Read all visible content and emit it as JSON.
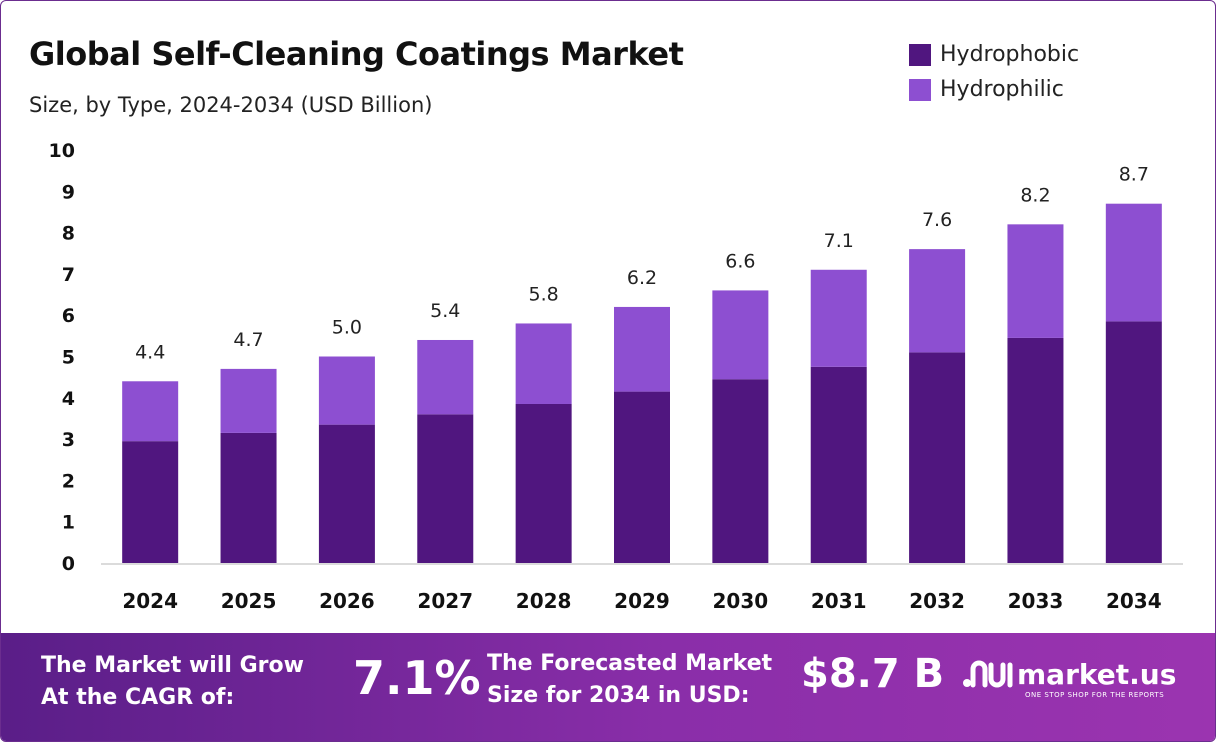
{
  "header": {
    "title": "Global Self-Cleaning Coatings Market",
    "subtitle": "Size, by Type, 2024-2034 (USD Billion)"
  },
  "legend": [
    {
      "label": "Hydrophobic",
      "color": "#50167f"
    },
    {
      "label": "Hydrophilic",
      "color": "#8d4fd1"
    }
  ],
  "chart_data": {
    "type": "bar",
    "stacked": true,
    "categories": [
      "2024",
      "2025",
      "2026",
      "2027",
      "2028",
      "2029",
      "2030",
      "2031",
      "2032",
      "2033",
      "2034"
    ],
    "series": [
      {
        "name": "Hydrophobic",
        "color": "#50167f",
        "values": [
          2.95,
          3.15,
          3.35,
          3.6,
          3.85,
          4.15,
          4.45,
          4.75,
          5.1,
          5.45,
          5.85
        ]
      },
      {
        "name": "Hydrophilic",
        "color": "#8d4fd1",
        "values": [
          1.45,
          1.55,
          1.65,
          1.8,
          1.95,
          2.05,
          2.15,
          2.35,
          2.5,
          2.75,
          2.85
        ]
      }
    ],
    "totals": [
      4.4,
      4.7,
      5.0,
      5.4,
      5.8,
      6.2,
      6.6,
      7.1,
      7.6,
      8.2,
      8.7
    ],
    "total_labels": [
      "4.4",
      "4.7",
      "5.0",
      "5.4",
      "5.8",
      "6.2",
      "6.6",
      "7.1",
      "7.6",
      "8.2",
      "8.7"
    ],
    "yticks": [
      "0",
      "1",
      "2",
      "3",
      "4",
      "5",
      "6",
      "7",
      "8",
      "9",
      "10"
    ],
    "ylim": [
      0,
      10
    ],
    "grid": false,
    "legend_position": "top-right",
    "title": "Global Self-Cleaning Coatings Market",
    "subtitle": "Size, by Type, 2024-2034 (USD Billion)"
  },
  "footer": {
    "cagr_line1": "The Market will Grow",
    "cagr_line2": "At the CAGR of:",
    "cagr_value": "7.1%",
    "forecast_line1": "The Forecasted Market",
    "forecast_line2": "Size for 2034 in USD:",
    "forecast_value": "$8.7 B",
    "brand_name": "market.us",
    "brand_tagline": "ONE STOP SHOP FOR THE REPORTS",
    "brand_color": "#ffffff"
  }
}
